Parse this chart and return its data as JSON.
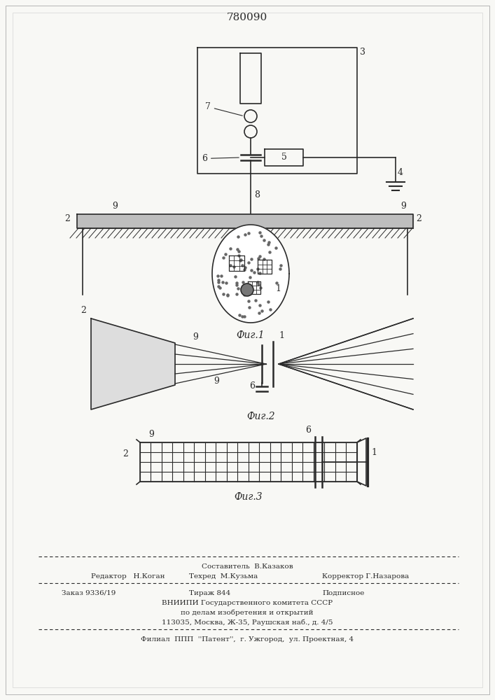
{
  "title": "780090",
  "title_fontsize": 11,
  "bg_color": "#f8f8f5",
  "line_color": "#2a2a2a",
  "fig1_caption": "Фиг.1",
  "fig2_caption": "Фиг.2",
  "fig3_caption": "Фиг.3",
  "footer_line1": "Составитель  В.Казаков",
  "footer_line2a": "Редактор   Н.Коган",
  "footer_line2b": "Техред  М.Кузьма",
  "footer_line2c": "Корректор Г.Назарова",
  "footer_line3a": "Заказ 9336/19",
  "footer_line3b": "Тираж 844",
  "footer_line3c": "Подписное",
  "footer_line4": "ВНИИПИ Государственного комитета СССР",
  "footer_line5": "по делам изобретения и открытий",
  "footer_line6": "113035, Москва, Ж-35, Раушская наб., д. 4/5",
  "footer_line7": "Филиал  ППП  ''Патент'',  г. Ужгород,  ул. Проектная, 4"
}
